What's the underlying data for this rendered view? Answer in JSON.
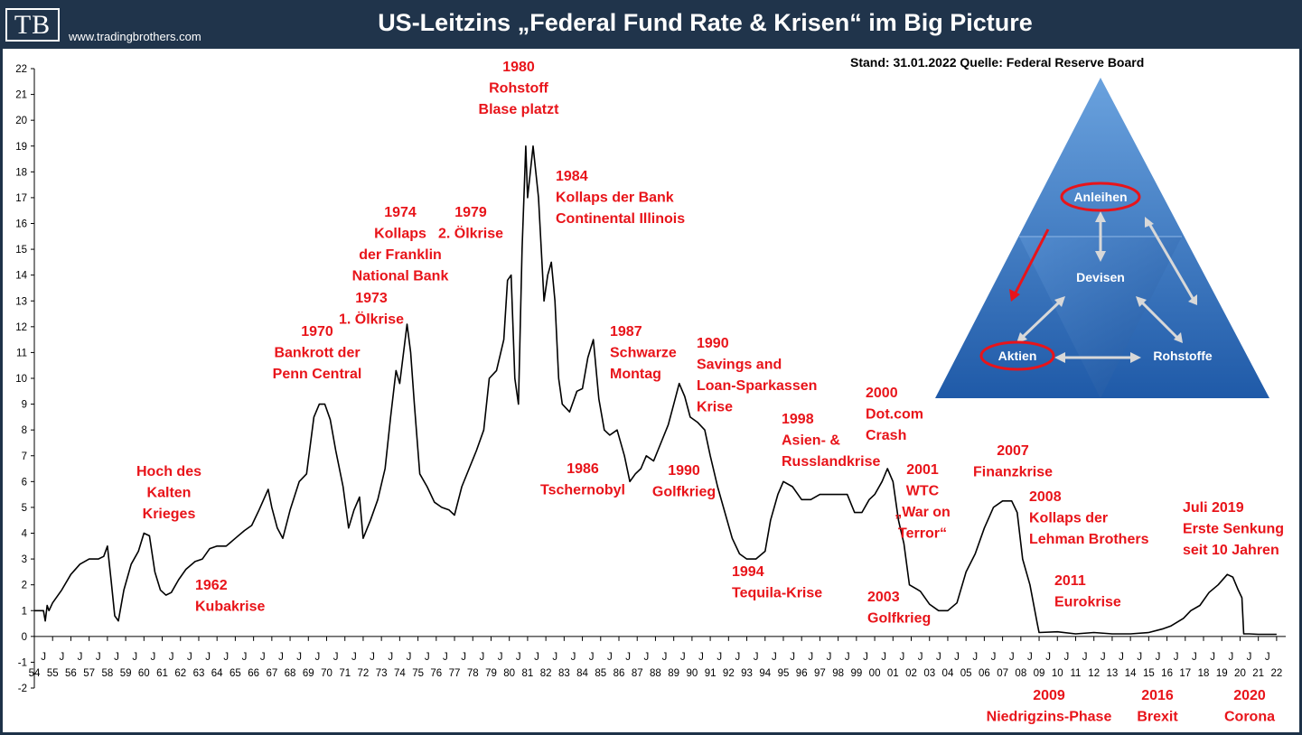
{
  "header": {
    "logo": "TB",
    "site": "www.tradingbrothers.com",
    "title": "US-Leitzins „Federal Fund Rate & Krisen“ im Big Picture"
  },
  "source_note": "Stand: 31.01.2022   Quelle: Federal Reserve Board",
  "colors": {
    "header_bg": "#20344b",
    "annotation": "#e8141a",
    "line": "#000000",
    "triangle": "#2f6fb8"
  },
  "triangle": {
    "labels": {
      "top": "Anleihen",
      "center": "Devisen",
      "left": "Aktien",
      "right": "Rohstoffe"
    }
  },
  "chart_data": {
    "type": "line",
    "title": "US-Leitzins „Federal Fund Rate & Krisen“ im Big Picture",
    "xlabel": "",
    "ylabel": "",
    "ylim": [
      -2,
      22
    ],
    "xlim": [
      1954,
      2022.5
    ],
    "y_ticks": [
      -2,
      -1,
      0,
      1,
      2,
      3,
      4,
      5,
      6,
      7,
      8,
      9,
      10,
      11,
      12,
      13,
      14,
      15,
      16,
      17,
      18,
      19,
      20,
      21,
      22
    ],
    "x_tick_labels": [
      "54",
      "55",
      "56",
      "57",
      "58",
      "59",
      "60",
      "61",
      "62",
      "63",
      "64",
      "65",
      "66",
      "67",
      "68",
      "69",
      "70",
      "71",
      "72",
      "73",
      "74",
      "75",
      "76",
      "77",
      "78",
      "79",
      "80",
      "81",
      "82",
      "83",
      "84",
      "85",
      "86",
      "87",
      "88",
      "89",
      "90",
      "91",
      "92",
      "93",
      "94",
      "95",
      "96",
      "97",
      "98",
      "99",
      "00",
      "01",
      "02",
      "03",
      "04",
      "05",
      "06",
      "07",
      "08",
      "09",
      "10",
      "11",
      "12",
      "13",
      "14",
      "15",
      "16",
      "17",
      "18",
      "19",
      "20",
      "21",
      "22"
    ],
    "x_minor_label": "J",
    "grid": false,
    "series": [
      {
        "x": [
          1954.0,
          1954.5,
          1954.6,
          1954.7,
          1954.8,
          1955.0,
          1955.5,
          1956.0,
          1956.5,
          1957.0,
          1957.5,
          1957.8,
          1958.0,
          1958.2,
          1958.4,
          1958.6,
          1958.9,
          1959.3,
          1959.7,
          1960.0,
          1960.3,
          1960.6,
          1960.9,
          1961.2,
          1961.5,
          1961.9,
          1962.3,
          1962.8,
          1963.2,
          1963.6,
          1964.0,
          1964.5,
          1965.0,
          1965.5,
          1965.9,
          1966.3,
          1966.8,
          1967.0,
          1967.3,
          1967.6,
          1968.0,
          1968.5,
          1968.9,
          1969.3,
          1969.6,
          1969.9,
          1970.2,
          1970.5,
          1970.9,
          1971.2,
          1971.5,
          1971.8,
          1972.0,
          1972.4,
          1972.8,
          1973.2,
          1973.5,
          1973.8,
          1974.0,
          1974.4,
          1974.6,
          1974.8,
          1975.1,
          1975.5,
          1975.9,
          1976.3,
          1976.7,
          1977.0,
          1977.4,
          1977.8,
          1978.2,
          1978.6,
          1978.9,
          1979.3,
          1979.7,
          1979.9,
          1980.1,
          1980.3,
          1980.5,
          1980.7,
          1980.9,
          1981.0,
          1981.3,
          1981.6,
          1981.9,
          1982.1,
          1982.3,
          1982.5,
          1982.7,
          1982.9,
          1983.3,
          1983.7,
          1984.0,
          1984.3,
          1984.6,
          1984.9,
          1985.2,
          1985.5,
          1985.9,
          1986.3,
          1986.6,
          1986.9,
          1987.2,
          1987.5,
          1987.9,
          1988.3,
          1988.7,
          1989.0,
          1989.3,
          1989.6,
          1989.9,
          1990.3,
          1990.7,
          1991.0,
          1991.4,
          1991.8,
          1992.2,
          1992.6,
          1993.0,
          1993.5,
          1994.0,
          1994.3,
          1994.7,
          1995.0,
          1995.5,
          1996.0,
          1996.5,
          1997.0,
          1997.5,
          1998.0,
          1998.5,
          1998.9,
          1999.3,
          1999.7,
          2000.0,
          2000.4,
          2000.7,
          2001.0,
          2001.3,
          2001.6,
          2001.9,
          2002.5,
          2003.0,
          2003.5,
          2004.0,
          2004.5,
          2005.0,
          2005.5,
          2006.0,
          2006.5,
          2007.0,
          2007.5,
          2007.8,
          2008.1,
          2008.5,
          2008.9,
          2009.0,
          2010.0,
          2011.0,
          2012.0,
          2013.0,
          2014.0,
          2015.0,
          2015.8,
          2016.2,
          2016.9,
          2017.3,
          2017.8,
          2018.3,
          2018.8,
          2019.3,
          2019.6,
          2019.9,
          2020.1,
          2020.2,
          2020.5,
          2021.0,
          2021.5,
          2022.0
        ],
        "values": [
          1.0,
          1.0,
          0.6,
          1.2,
          1.0,
          1.3,
          1.8,
          2.4,
          2.8,
          3.0,
          3.0,
          3.1,
          3.5,
          2.2,
          0.8,
          0.6,
          1.8,
          2.8,
          3.3,
          4.0,
          3.9,
          2.5,
          1.8,
          1.6,
          1.7,
          2.2,
          2.6,
          2.9,
          3.0,
          3.4,
          3.5,
          3.5,
          3.8,
          4.1,
          4.3,
          4.9,
          5.7,
          5.0,
          4.2,
          3.8,
          4.9,
          6.0,
          6.3,
          8.5,
          9.0,
          9.0,
          8.4,
          7.2,
          5.8,
          4.2,
          4.9,
          5.4,
          3.8,
          4.5,
          5.3,
          6.5,
          8.5,
          10.3,
          9.8,
          12.1,
          11.0,
          9.0,
          6.3,
          5.8,
          5.2,
          5.0,
          4.9,
          4.7,
          5.8,
          6.5,
          7.2,
          8.0,
          10.0,
          10.3,
          11.5,
          13.8,
          14.0,
          10.0,
          9.0,
          15.0,
          19.0,
          17.0,
          19.0,
          17.0,
          13.0,
          14.0,
          14.5,
          13.0,
          10.0,
          9.0,
          8.7,
          9.5,
          9.6,
          10.8,
          11.5,
          9.2,
          8.0,
          7.8,
          8.0,
          7.0,
          6.0,
          6.3,
          6.5,
          7.0,
          6.8,
          7.5,
          8.2,
          9.0,
          9.8,
          9.3,
          8.5,
          8.3,
          8.0,
          7.0,
          5.8,
          4.8,
          3.8,
          3.2,
          3.0,
          3.0,
          3.3,
          4.5,
          5.5,
          6.0,
          5.8,
          5.3,
          5.3,
          5.5,
          5.5,
          5.5,
          5.5,
          4.8,
          4.8,
          5.3,
          5.5,
          6.0,
          6.5,
          6.0,
          4.5,
          3.6,
          2.0,
          1.75,
          1.25,
          1.0,
          1.0,
          1.3,
          2.5,
          3.2,
          4.2,
          5.0,
          5.25,
          5.25,
          4.8,
          3.0,
          2.0,
          0.5,
          0.15,
          0.18,
          0.1,
          0.15,
          0.1,
          0.1,
          0.15,
          0.3,
          0.4,
          0.7,
          1.0,
          1.2,
          1.7,
          2.0,
          2.4,
          2.3,
          1.8,
          1.5,
          0.1,
          0.1,
          0.08,
          0.08,
          0.08
        ]
      }
    ],
    "annotations": [
      {
        "year": 1961,
        "lines": [
          "Hoch des",
          "Kalten",
          "Krieges"
        ]
      },
      {
        "year": 1962,
        "lines": [
          "1962",
          "Kubakrise"
        ]
      },
      {
        "year": 1970,
        "lines": [
          "1970",
          "Bankrott der",
          "Penn Central"
        ]
      },
      {
        "year": 1973,
        "lines": [
          "1973",
          "1. Ölkrise"
        ]
      },
      {
        "year": 1974,
        "lines": [
          "1974",
          "Kollaps",
          "der Franklin",
          "National Bank"
        ]
      },
      {
        "year": 1979,
        "lines": [
          "1979",
          "2. Ölkrise"
        ]
      },
      {
        "year": 1980,
        "lines": [
          "1980",
          "Rohstoff",
          "Blase platzt"
        ]
      },
      {
        "year": 1984,
        "lines": [
          "1984",
          "Kollaps der Bank",
          "Continental Illinois"
        ]
      },
      {
        "year": 1986,
        "lines": [
          "1986",
          "Tschernobyl"
        ]
      },
      {
        "year": 1987,
        "lines": [
          "1987",
          "Schwarze",
          "Montag"
        ]
      },
      {
        "year": 1990,
        "lines": [
          "1990",
          "Golfkrieg"
        ]
      },
      {
        "year": 1990,
        "lines": [
          "1990",
          "Savings and",
          "Loan-Sparkassen",
          "Krise"
        ]
      },
      {
        "year": 1994,
        "lines": [
          "1994",
          "Tequila-Krise"
        ]
      },
      {
        "year": 1998,
        "lines": [
          "1998",
          "Asien- &",
          "Russlandkrise"
        ]
      },
      {
        "year": 2000,
        "lines": [
          "2000",
          "Dot.com",
          "Crash"
        ]
      },
      {
        "year": 2001,
        "lines": [
          "2001",
          "WTC",
          "„War on",
          "Terror“"
        ]
      },
      {
        "year": 2003,
        "lines": [
          "2003",
          "Golfkrieg"
        ]
      },
      {
        "year": 2007,
        "lines": [
          "2007",
          "Finanzkrise"
        ]
      },
      {
        "year": 2008,
        "lines": [
          "2008",
          "Kollaps der",
          "Lehman Brothers"
        ]
      },
      {
        "year": 2011,
        "lines": [
          "2011",
          "Eurokrise"
        ]
      },
      {
        "year": 2019,
        "lines": [
          "Juli 2019",
          "Erste Senkung",
          "seit 10 Jahren"
        ]
      },
      {
        "year": 2009,
        "lines": [
          "2009",
          "Niedrigzins-Phase"
        ]
      },
      {
        "year": 2016,
        "lines": [
          "2016",
          "Brexit"
        ]
      },
      {
        "year": 2020,
        "lines": [
          "2020",
          "Corona"
        ]
      }
    ]
  }
}
